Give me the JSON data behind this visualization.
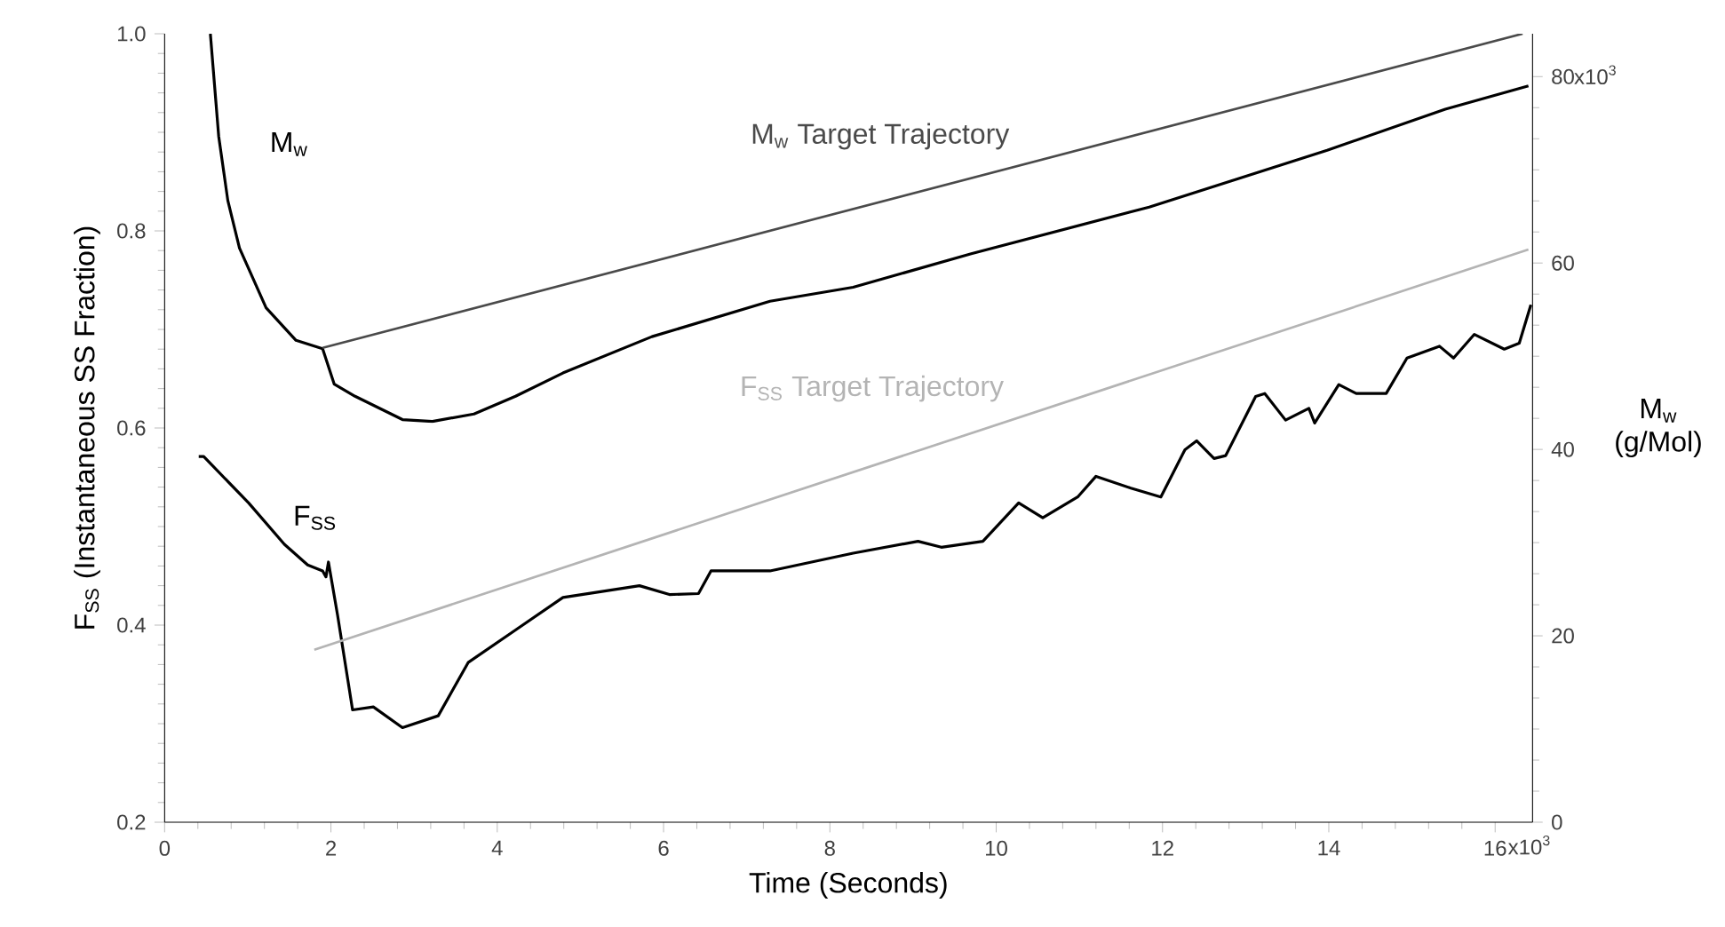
{
  "chart_data": {
    "type": "line",
    "xlabel": "Time (Seconds)",
    "ylabel": "F$_{SS}$ (Instantaneous SS Fraction)",
    "y2label": "M$_{w}$ (g/Mol)",
    "xlim": [
      0,
      16.45
    ],
    "xticks": [
      0,
      2,
      4,
      6,
      8,
      10,
      12,
      14,
      16
    ],
    "annotations": [
      "x10$^{3}$",
      "x10$^{3}$"
    ],
    "ylim": [
      0.2,
      1.0
    ],
    "yticks": [
      0.2,
      0.4,
      0.6,
      0.8,
      {
        "value": 1.0,
        "label": "1.0"
      }
    ],
    "y2lim": [
      0,
      84.6
    ],
    "y2ticks": [
      0,
      20,
      40,
      60,
      80
    ],
    "series": [
      {
        "name": "M$_{w}$",
        "color": "#000000",
        "axis": "y2",
        "x": [
          0.55,
          0.65,
          0.76,
          0.9,
          1.22,
          1.58,
          1.9,
          2.04,
          2.29,
          2.86,
          3.22,
          3.72,
          4.22,
          4.79,
          5.86,
          7.28,
          8.28,
          9.7,
          11.84,
          13.98,
          15.4,
          16.4
        ],
        "values": [
          84.6,
          73.6,
          66.7,
          61.6,
          55.2,
          51.7,
          50.8,
          47.0,
          45.7,
          43.2,
          43.0,
          43.8,
          45.7,
          48.2,
          52.1,
          55.9,
          57.4,
          61.0,
          66.0,
          72.1,
          76.5,
          79.0
        ]
      },
      {
        "name": "F$_{SS}$",
        "color": "#000000",
        "x": [
          0.41,
          0.47,
          1.01,
          1.44,
          1.72,
          1.9,
          1.94,
          1.97,
          2.08,
          2.26,
          2.51,
          2.86,
          3.29,
          3.65,
          4.22,
          4.79,
          5.71,
          6.07,
          6.42,
          6.57,
          7.28,
          8.28,
          9.06,
          9.34,
          9.84,
          10.27,
          10.56,
          10.98,
          11.2,
          11.62,
          11.98,
          12.27,
          12.41,
          12.62,
          12.76,
          13.12,
          13.23,
          13.48,
          13.76,
          13.83,
          14.12,
          14.33,
          14.69,
          14.94,
          15.33,
          15.5,
          15.75,
          16.11,
          16.29,
          16.43
        ],
        "values": [
          0.571,
          0.571,
          0.524,
          0.482,
          0.461,
          0.455,
          0.449,
          0.464,
          0.41,
          0.314,
          0.317,
          0.296,
          0.308,
          0.362,
          0.395,
          0.428,
          0.44,
          0.431,
          0.432,
          0.455,
          0.455,
          0.473,
          0.485,
          0.479,
          0.485,
          0.524,
          0.509,
          0.53,
          0.551,
          0.539,
          0.53,
          0.578,
          0.587,
          0.569,
          0.572,
          0.632,
          0.635,
          0.608,
          0.62,
          0.605,
          0.644,
          0.635,
          0.635,
          0.671,
          0.683,
          0.671,
          0.695,
          0.68,
          0.686,
          0.725
        ]
      },
      {
        "name": "M$_{w}$ Target Trajectory",
        "color": "#4a4a4a",
        "axis": "y2",
        "x": [
          1.9,
          16.33
        ],
        "values": [
          50.9,
          84.6
        ]
      },
      {
        "name": "F$_{SS}$ Target Trajectory",
        "color": "#b4b4b4",
        "x": [
          1.8,
          16.4
        ],
        "values": [
          0.375,
          0.781
        ]
      }
    ]
  }
}
